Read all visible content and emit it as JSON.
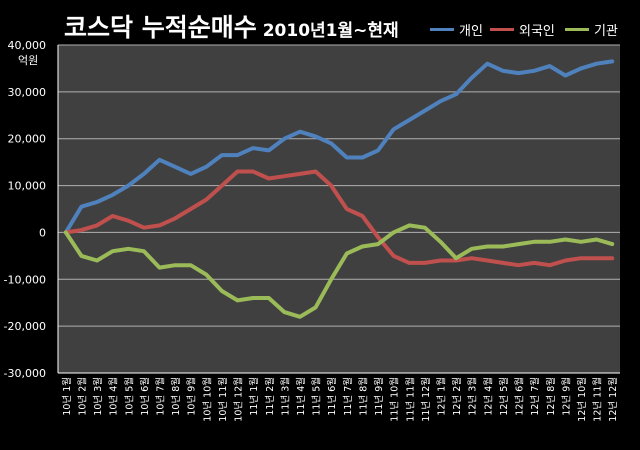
{
  "chart_data": {
    "type": "line",
    "title": "코스닥 누적순매수",
    "subtitle": "2010년1월~현재",
    "ylabel": "억원",
    "ylim": [
      -30000,
      40000
    ],
    "yticks": [
      -30000,
      -20000,
      -10000,
      0,
      10000,
      20000,
      30000,
      40000
    ],
    "ytick_labels": [
      "-30,000",
      "-20,000",
      "-10,000",
      "0",
      "10,000",
      "20,000",
      "30,000",
      "40,000"
    ],
    "grid": true,
    "legend_position": "top-right",
    "categories": [
      "10년 1월",
      "10년 2월",
      "10년 3월",
      "10년 4월",
      "10년 5월",
      "10년 6월",
      "10년 7월",
      "10년 8월",
      "10년 9월",
      "10년 10월",
      "10년 11월",
      "10년 12월",
      "11년 1월",
      "11년 2월",
      "11년 3월",
      "11년 4월",
      "11년 5월",
      "11년 6월",
      "11년 7월",
      "11년 8월",
      "11년 9월",
      "11년 10월",
      "11년 11월",
      "11년 12월",
      "12년 1월",
      "12년 2월",
      "12년 3월",
      "12년 4월",
      "12년 5월",
      "12년 6월",
      "12년 7월",
      "12년 8월",
      "12년 9월",
      "12년 10월",
      "12년 11월",
      "12년 12월"
    ],
    "series": [
      {
        "name": "개인",
        "color": "#4f81bd",
        "values": [
          0,
          5500,
          6500,
          8000,
          10000,
          12500,
          15500,
          14000,
          12500,
          14000,
          16500,
          16500,
          18000,
          17500,
          20000,
          21500,
          20500,
          19000,
          16000,
          16000,
          17500,
          22000,
          24000,
          26000,
          28000,
          29500,
          33000,
          36000,
          34500,
          34000,
          34500,
          35500,
          33500,
          35000,
          36000,
          36500
        ]
      },
      {
        "name": "외국인",
        "color": "#c0504d",
        "values": [
          0,
          500,
          1500,
          3500,
          2500,
          1000,
          1500,
          3000,
          5000,
          7000,
          10000,
          13000,
          13000,
          11500,
          12000,
          12500,
          13000,
          10000,
          5000,
          3500,
          -1000,
          -5000,
          -6500,
          -6500,
          -6000,
          -6000,
          -5500,
          -6000,
          -6500,
          -7000,
          -6500,
          -7000,
          -6000,
          -5500,
          -5500,
          -5500
        ]
      },
      {
        "name": "기관",
        "color": "#9bbb59",
        "values": [
          0,
          -5000,
          -6000,
          -4000,
          -3500,
          -4000,
          -7500,
          -7000,
          -7000,
          -9000,
          -12500,
          -14500,
          -14000,
          -14000,
          -17000,
          -18000,
          -16000,
          -10000,
          -4500,
          -3000,
          -2500,
          0,
          1500,
          1000,
          -2000,
          -5500,
          -3500,
          -3000,
          -3000,
          -2500,
          -2000,
          -2000,
          -1500,
          -2000,
          -1500,
          -2500
        ]
      }
    ]
  }
}
